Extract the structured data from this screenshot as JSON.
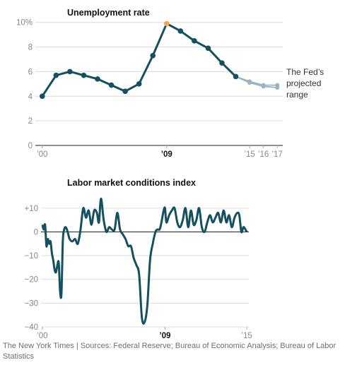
{
  "charts": {
    "unemployment": {
      "type": "line",
      "title": "Unemployment rate",
      "y_ticks": [
        {
          "value": 0,
          "label": "0"
        },
        {
          "value": 2,
          "label": "2"
        },
        {
          "value": 4,
          "label": "4"
        },
        {
          "value": 6,
          "label": "6"
        },
        {
          "value": 8,
          "label": "8"
        },
        {
          "value": 10,
          "label": "10%"
        }
      ],
      "x_ticks": [
        {
          "value": 2000,
          "label": "’00",
          "bold": false
        },
        {
          "value": 2009,
          "label": "’09",
          "bold": true
        },
        {
          "value": 2015,
          "label": "’15",
          "bold": false
        },
        {
          "value": 2016,
          "label": "’16",
          "bold": false
        },
        {
          "value": 2017,
          "label": "’17",
          "bold": false
        }
      ],
      "ylim": [
        0,
        10.5
      ],
      "xlim": [
        1999.5,
        2017.4
      ],
      "grid": true,
      "series": [
        {
          "name": "",
          "color": "#14505f",
          "x": [
            2000,
            2001,
            2002,
            2003,
            2004,
            2005,
            2006,
            2007,
            2008,
            2009,
            2010,
            2011,
            2012,
            2013,
            2014
          ],
          "y": [
            4.0,
            5.7,
            6.0,
            5.7,
            5.4,
            4.9,
            4.4,
            5.0,
            7.3,
            9.9,
            9.3,
            8.5,
            7.9,
            6.7,
            5.6
          ]
        }
      ],
      "highlight": {
        "x": 2009,
        "y": 9.9,
        "color": "#f5a64a"
      },
      "projection": {
        "color": "#9ab3bf",
        "x": [
          2014,
          2015,
          2016,
          2017
        ],
        "upper": [
          5.6,
          5.2,
          4.9,
          4.9
        ],
        "lower": [
          5.6,
          5.1,
          4.8,
          4.7
        ],
        "label": [
          "The Fed’s",
          "projected",
          "range"
        ]
      }
    },
    "labor": {
      "type": "line",
      "title": "Labor market conditions index",
      "y_ticks": [
        {
          "value": 10,
          "label": "+10"
        },
        {
          "value": 0,
          "label": "0"
        },
        {
          "value": -10,
          "label": "−10"
        },
        {
          "value": -20,
          "label": "−20"
        },
        {
          "value": -30,
          "label": "−30"
        },
        {
          "value": -40,
          "label": "−40"
        }
      ],
      "x_ticks": [
        {
          "value": 2000,
          "label": "’00",
          "bold": false
        },
        {
          "value": 2009,
          "label": "’09",
          "bold": true
        },
        {
          "value": 2015,
          "label": "’15",
          "bold": false
        }
      ],
      "ylim": [
        -40,
        15
      ],
      "xlim": [
        1999.9,
        2015.15
      ],
      "grid": true,
      "series": [
        {
          "name": "",
          "color": "#14505f",
          "x": [
            2000.0,
            2000.1,
            2000.2,
            2000.3,
            2000.4,
            2000.5,
            2000.6,
            2000.7,
            2000.8,
            2000.9,
            2001.0,
            2001.1,
            2001.2,
            2001.3,
            2001.4,
            2001.5,
            2001.6,
            2001.7,
            2001.8,
            2001.9,
            2002.0,
            2002.2,
            2002.4,
            2002.6,
            2002.8,
            2003.0,
            2003.2,
            2003.4,
            2003.6,
            2003.8,
            2004.0,
            2004.15,
            2004.3,
            2004.5,
            2004.7,
            2004.9,
            2005.1,
            2005.3,
            2005.5,
            2005.7,
            2005.9,
            2006.1,
            2006.3,
            2006.5,
            2006.7,
            2006.9,
            2007.1,
            2007.3,
            2007.5,
            2007.7,
            2007.9,
            2008.1,
            2008.3,
            2008.45,
            2008.6,
            2008.7,
            2008.8,
            2008.9,
            2009.0,
            2009.1,
            2009.3,
            2009.5,
            2009.7,
            2009.9,
            2010.1,
            2010.3,
            2010.5,
            2010.7,
            2010.9,
            2011.1,
            2011.3,
            2011.5,
            2011.7,
            2011.9,
            2012.1,
            2012.3,
            2012.5,
            2012.7,
            2012.9,
            2013.1,
            2013.3,
            2013.5,
            2013.7,
            2013.9,
            2014.1,
            2014.3,
            2014.45,
            2014.6,
            2014.75,
            2014.9,
            2015.0
          ],
          "y": [
            3.0,
            1.0,
            3.0,
            -6.0,
            -3.0,
            -5.0,
            -4.0,
            -9.0,
            -12.0,
            -16.0,
            -17.0,
            -14.0,
            -13.0,
            -25.0,
            -26.0,
            -4.0,
            1.0,
            2.0,
            1.0,
            -1.0,
            -3.0,
            -4.0,
            -3.0,
            -5.0,
            1.0,
            10.0,
            6.0,
            9.0,
            3.0,
            9.0,
            8.0,
            4.0,
            14.0,
            5.0,
            0.0,
            2.0,
            1.0,
            1.0,
            8.0,
            1.0,
            -1.0,
            -3.0,
            -6.0,
            -6.0,
            -11.0,
            -14.0,
            -18.0,
            -36.0,
            -38.0,
            -31.0,
            -12.0,
            -5.0,
            0.0,
            1.0,
            1.0,
            3.0,
            6.0,
            9.0,
            10.0,
            4.0,
            7.0,
            9.0,
            10.0,
            4.0,
            2.0,
            5.0,
            10.0,
            2.0,
            9.0,
            3.0,
            5.0,
            10.0,
            2.0,
            0.0,
            4.0,
            7.0,
            4.0,
            6.0,
            8.0,
            4.0,
            9.0,
            4.0,
            7.0,
            2.0,
            6.0,
            8.0,
            7.0,
            0.0,
            2.0,
            1.0,
            0.0
          ]
        }
      ]
    }
  },
  "credit": "The New York Times | Sources: Federal Reserve; Bureau of Economic Analysis; Bureau of Labor Statistics"
}
